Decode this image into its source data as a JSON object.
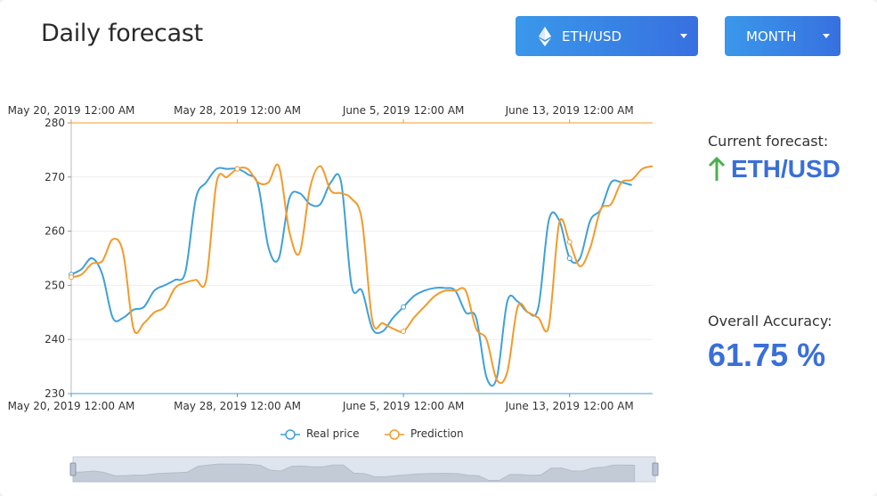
{
  "header": {
    "title": "Daily forecast",
    "pair_dropdown": {
      "label": "ETH/USD",
      "icon": "ethereum-icon"
    },
    "period_dropdown": {
      "label": "MONTH"
    }
  },
  "side": {
    "forecast_label": "Current forecast:",
    "forecast_value": "ETH/USD",
    "forecast_direction": "up",
    "forecast_color": "#4caf50",
    "accuracy_label": "Overall Accuracy:",
    "accuracy_value": "61.75 %"
  },
  "colors": {
    "accent": "#3a6fd8",
    "real": "#3fa0d8",
    "prediction": "#f39a2b"
  },
  "chart_data": {
    "type": "line",
    "title": "",
    "xlabel": "",
    "ylabel": "",
    "ylim": [
      230,
      280
    ],
    "yticks": [
      230,
      240,
      250,
      260,
      270,
      280
    ],
    "x_ticks": [
      "May 20, 2019 12:00 AM",
      "May 28, 2019 12:00 AM",
      "June 5, 2019 12:00 AM",
      "June 13, 2019 12:00 AM"
    ],
    "x_tick_days": [
      0,
      8,
      16,
      24
    ],
    "x_range_days": [
      0,
      28
    ],
    "grid": true,
    "legend": "bottom",
    "series": [
      {
        "name": "Real price",
        "color": "#3fa0d8",
        "x": [
          0,
          0.5,
          1,
          1.5,
          2,
          2.5,
          3,
          3.5,
          4,
          4.5,
          5,
          5.5,
          6,
          6.5,
          7,
          7.5,
          8,
          8.5,
          9,
          9.5,
          10,
          10.5,
          11,
          11.5,
          12,
          12.5,
          13,
          13.5,
          14,
          14.5,
          15,
          15.5,
          16,
          16.5,
          17,
          17.5,
          18,
          18.5,
          19,
          19.5,
          20,
          20.5,
          21,
          21.5,
          22,
          22.5,
          23,
          23.5,
          24,
          24.5,
          25,
          25.5,
          26,
          26.5,
          27
        ],
        "values": [
          252,
          253,
          255,
          252,
          244,
          244,
          245.5,
          246,
          249,
          250,
          251,
          252.5,
          266,
          269,
          271.5,
          271.5,
          271.5,
          270.5,
          268.5,
          257,
          255,
          266,
          267,
          265,
          265,
          269,
          269,
          250,
          249,
          242,
          241.5,
          244,
          246,
          248,
          249,
          249.5,
          249.5,
          249,
          245,
          244,
          233,
          233,
          247,
          247,
          245,
          246,
          262,
          262,
          255,
          255,
          262,
          264,
          269,
          269,
          268.5
        ]
      },
      {
        "name": "Prediction",
        "color": "#f39a2b",
        "x": [
          0,
          0.5,
          1,
          1.5,
          2,
          2.5,
          3,
          3.5,
          4,
          4.5,
          5,
          5.5,
          6,
          6.5,
          7,
          7.5,
          8,
          8.5,
          9,
          9.5,
          10,
          10.5,
          11,
          11.5,
          12,
          12.5,
          13,
          13.5,
          14,
          14.5,
          15,
          15.5,
          16,
          16.5,
          17,
          17.5,
          18,
          18.5,
          19,
          19.5,
          20,
          20.5,
          21,
          21.5,
          22,
          22.5,
          23,
          23.5,
          24,
          24.5,
          25,
          25.5,
          26,
          26.5,
          27,
          27.5,
          28
        ],
        "values": [
          251.5,
          252,
          254,
          254.5,
          258.5,
          256,
          242,
          243,
          245,
          246,
          249.5,
          250.5,
          251,
          251,
          269,
          270,
          271.5,
          271.5,
          269,
          269,
          272,
          260,
          256,
          268,
          272,
          267.5,
          267,
          266,
          262,
          243.5,
          243,
          242,
          241.5,
          244,
          246,
          248,
          249,
          249,
          249,
          242,
          240,
          232.5,
          234,
          246,
          245,
          244,
          242.5,
          261.5,
          258,
          253.5,
          257,
          264,
          265,
          269,
          269.5,
          271.5,
          272
        ]
      }
    ]
  }
}
